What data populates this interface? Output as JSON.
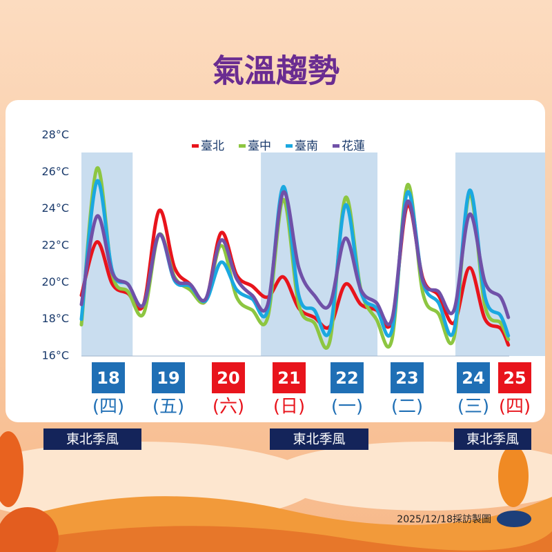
{
  "chart_data": {
    "type": "line",
    "title": "氣溫趨勢",
    "x": [
      0,
      1,
      2,
      3,
      4,
      5,
      6,
      7,
      8,
      9,
      10,
      11,
      12,
      13,
      14,
      15,
      16,
      17,
      18,
      19,
      20,
      21,
      22,
      23,
      24,
      25,
      26,
      27,
      27.5
    ],
    "xlim": [
      0,
      27.5
    ],
    "ylim": [
      16,
      28
    ],
    "yticks": [
      {
        "value": 16,
        "label": "16°C"
      },
      {
        "value": 18,
        "label": "18°C"
      },
      {
        "value": 20,
        "label": "20°C"
      },
      {
        "value": 22,
        "label": "22°C"
      },
      {
        "value": 24,
        "label": "24°C"
      },
      {
        "value": 26,
        "label": "26°C"
      },
      {
        "value": 28,
        "label": "28°C"
      }
    ],
    "series": [
      {
        "name": "臺北",
        "color": "#e8141c",
        "values": [
          19.3,
          22.2,
          19.9,
          19.4,
          18.8,
          23.9,
          20.8,
          19.9,
          19.0,
          22.7,
          20.4,
          19.8,
          19.2,
          20.3,
          18.6,
          18.1,
          17.6,
          19.9,
          18.8,
          18.5,
          17.9,
          24.2,
          20.2,
          19.3,
          17.8,
          20.8,
          18.0,
          17.5,
          16.6
        ]
      },
      {
        "name": "臺中",
        "color": "#8dc641",
        "values": [
          17.7,
          26.2,
          20.4,
          19.5,
          18.3,
          22.6,
          20.3,
          19.6,
          19.0,
          22.0,
          19.2,
          18.5,
          18.1,
          24.5,
          18.8,
          17.8,
          16.8,
          24.6,
          19.6,
          18.0,
          16.9,
          25.3,
          19.4,
          18.3,
          17.0,
          24.8,
          18.7,
          17.8,
          16.9
        ]
      },
      {
        "name": "臺南",
        "color": "#1ba8e0",
        "values": [
          18.0,
          25.5,
          20.6,
          19.9,
          18.8,
          22.6,
          20.1,
          19.8,
          19.0,
          21.1,
          19.6,
          19.1,
          18.5,
          25.2,
          19.3,
          18.5,
          17.4,
          24.2,
          19.5,
          18.6,
          17.4,
          24.9,
          20.0,
          18.9,
          17.4,
          25.0,
          19.2,
          18.2,
          17.1
        ]
      },
      {
        "name": "花蓮",
        "color": "#7051a8",
        "values": [
          18.8,
          23.6,
          20.5,
          19.9,
          18.8,
          22.6,
          20.2,
          19.9,
          19.1,
          22.3,
          20.2,
          19.3,
          18.8,
          24.9,
          20.8,
          19.3,
          18.8,
          22.4,
          19.6,
          18.9,
          18.0,
          24.4,
          20.1,
          19.5,
          18.5,
          23.7,
          20.0,
          19.2,
          18.1
        ]
      }
    ],
    "bands": [
      {
        "from": 0,
        "to": 3.3,
        "label": "東北季風"
      },
      {
        "from": 11.56,
        "to": 19.07,
        "label": "東北季風"
      },
      {
        "from": 24.09,
        "to": 29.9,
        "label": "東北季風"
      }
    ],
    "days": [
      {
        "date": "18",
        "weekday": "(四)",
        "color": "#1f6fb5"
      },
      {
        "date": "19",
        "weekday": "(五)",
        "color": "#1f6fb5"
      },
      {
        "date": "20",
        "weekday": "(六)",
        "color": "#e8141c"
      },
      {
        "date": "21",
        "weekday": "(日)",
        "color": "#e8141c"
      },
      {
        "date": "22",
        "weekday": "(一)",
        "color": "#1f6fb5"
      },
      {
        "date": "23",
        "weekday": "(二)",
        "color": "#1f6fb5"
      },
      {
        "date": "24",
        "weekday": "(三)",
        "color": "#1f6fb5"
      },
      {
        "date": "25",
        "weekday": "(四)",
        "color": "#e8141c"
      }
    ],
    "footer": "2025/12/18採訪製圖"
  }
}
